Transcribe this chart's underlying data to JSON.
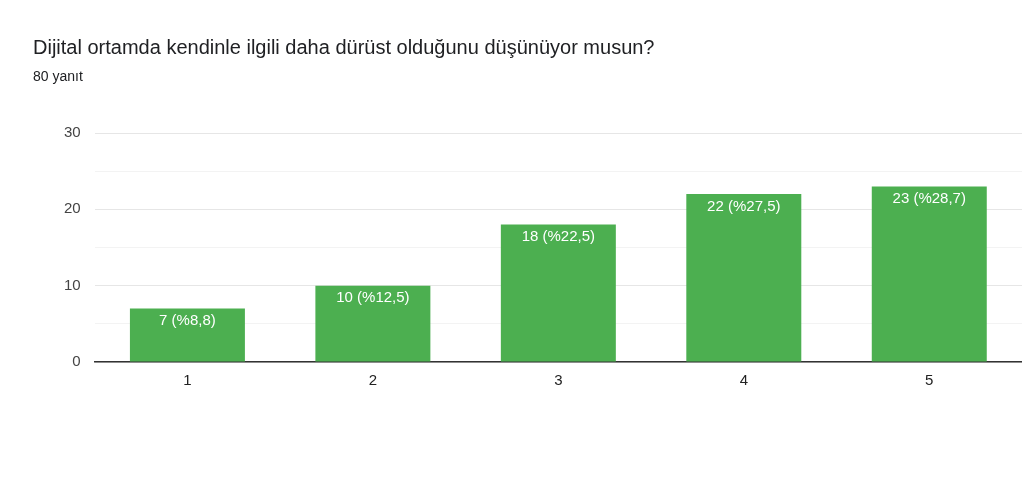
{
  "chart_data": {
    "type": "bar",
    "title": "Dijital ortamda kendinle ilgili daha dürüst olduğunu düşünüyor musun?",
    "subtitle": "80 yanıt",
    "categories": [
      "1",
      "2",
      "3",
      "4",
      "5"
    ],
    "values": [
      7,
      10,
      18,
      22,
      23
    ],
    "value_labels": [
      "7 (%8,8)",
      "10 (%12,5)",
      "18 (%22,5)",
      "22 (%27,5)",
      "23 (%28,7)"
    ],
    "color": "#4caf50",
    "ylim": [
      0,
      30
    ],
    "yticks": [
      0,
      {
        "value": 5,
        "label": null
      },
      10,
      {
        "value": 15,
        "label": null
      },
      20,
      {
        "value": 25,
        "label": null
      },
      30
    ],
    "grid": "y",
    "legend": false
  }
}
